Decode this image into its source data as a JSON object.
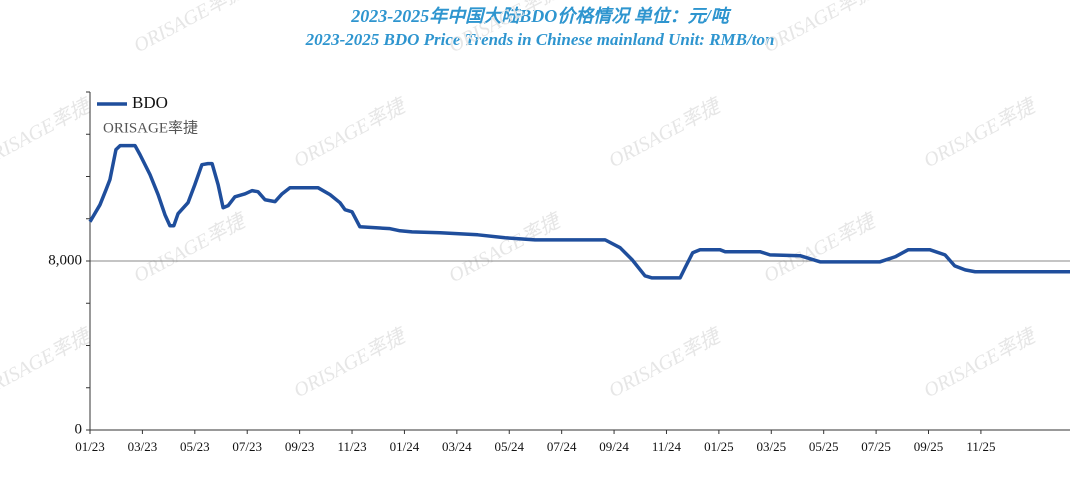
{
  "chart_data": {
    "type": "line",
    "title": "2023-2025年中国大陆BDO价格情况 单位：元/吨",
    "subtitle": "2023-2025 BDO Price Trends in Chinese mainland Unit: RMB/ton",
    "logo": "ORISAGE率捷",
    "watermark": "ORISAGE率捷",
    "xlim": [
      0,
      37.4
    ],
    "xticks": [
      {
        "value": 0,
        "label": "01/23"
      },
      {
        "value": 2,
        "label": "03/23"
      },
      {
        "value": 4,
        "label": "05/23"
      },
      {
        "value": 6,
        "label": "07/23"
      },
      {
        "value": 8,
        "label": "09/23"
      },
      {
        "value": 10,
        "label": "11/23"
      },
      {
        "value": 12,
        "label": "01/24"
      },
      {
        "value": 14,
        "label": "03/24"
      },
      {
        "value": 16,
        "label": "05/24"
      },
      {
        "value": 18,
        "label": "07/24"
      },
      {
        "value": 20,
        "label": "09/24"
      },
      {
        "value": 22,
        "label": "11/24"
      },
      {
        "value": 24,
        "label": "01/25"
      },
      {
        "value": 26,
        "label": "03/25"
      },
      {
        "value": 28,
        "label": "05/25"
      },
      {
        "value": 30,
        "label": "07/25"
      },
      {
        "value": 32,
        "label": "09/25"
      },
      {
        "value": 34,
        "label": "11/25"
      }
    ],
    "ylim": [
      0,
      16000
    ],
    "yticks": [
      0,
      {
        "value": 8000,
        "label": "8,000"
      }
    ],
    "yminor_ticks": [
      2000,
      4000,
      6000,
      10000,
      12000,
      14000,
      16000
    ],
    "gridlines_y": [
      8000
    ],
    "legend": "upper left",
    "series": [
      {
        "name": "BDO",
        "color": "#1f4e9c",
        "x": [
          0,
          0.38,
          0.61,
          0.76,
          0.99,
          1.15,
          1.72,
          1.91,
          2.29,
          2.6,
          2.86,
          3.05,
          3.2,
          3.36,
          3.74,
          4.0,
          4.27,
          4.5,
          4.66,
          4.89,
          5.08,
          5.27,
          5.53,
          5.92,
          6.18,
          6.41,
          6.68,
          7.06,
          7.33,
          7.63,
          8.7,
          9.16,
          9.54,
          9.73,
          10.0,
          10.3,
          11.45,
          11.83,
          12.29,
          13.36,
          14.8,
          15.84,
          16.98,
          19.66,
          20.23,
          20.69,
          21.18,
          21.45,
          22.52,
          22.71,
          23.0,
          23.28,
          24.05,
          24.24,
          25.57,
          25.95,
          27.1,
          27.86,
          30.15,
          30.73,
          31.22,
          32.06,
          32.63,
          33.0,
          33.4,
          33.78,
          37.4
        ],
        "values": [
          9860,
          10660,
          11370,
          11850,
          13270,
          13460,
          13460,
          13030,
          12090,
          11140,
          10190,
          9670,
          9670,
          10240,
          10760,
          11610,
          12560,
          12610,
          12610,
          11610,
          10520,
          10620,
          11040,
          11180,
          11330,
          11280,
          10900,
          10810,
          11180,
          11470,
          11470,
          11140,
          10760,
          10430,
          10330,
          9620,
          9530,
          9430,
          9380,
          9340,
          9240,
          9100,
          9000,
          9000,
          8630,
          8060,
          7300,
          7200,
          7200,
          7680,
          8390,
          8530,
          8530,
          8440,
          8440,
          8290,
          8250,
          7960,
          7960,
          8200,
          8530,
          8530,
          8290,
          7770,
          7580,
          7490,
          7490
        ]
      }
    ]
  }
}
